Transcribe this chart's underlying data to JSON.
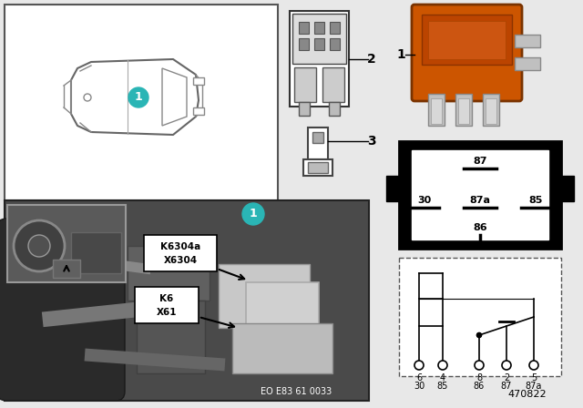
{
  "bg_color": "#e8e8e8",
  "white": "#ffffff",
  "black": "#000000",
  "teal": "#2ab5b5",
  "orange_relay": "#cc5500",
  "dark_orange": "#aa4400",
  "gray_photo": "#787878",
  "gray_dark": "#404040",
  "gray_mid": "#909090",
  "gray_light": "#b0b0b0",
  "diagram_number": "470822",
  "eo_text": "EO E83 61 0033",
  "label_1": "1",
  "label_2": "2",
  "label_3": "3"
}
